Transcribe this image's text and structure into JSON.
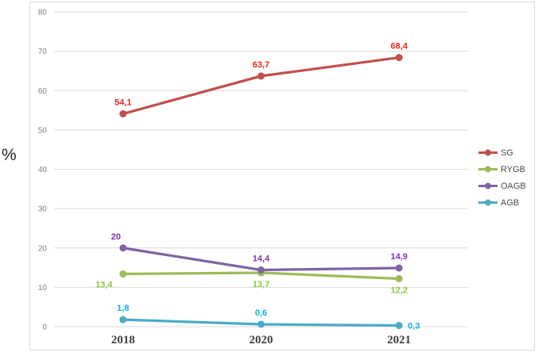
{
  "y_axis_title": "%",
  "chart_data": {
    "type": "line",
    "title": "",
    "xlabel": "",
    "ylabel": "%",
    "categories": [
      "2018",
      "2020",
      "2021"
    ],
    "series": [
      {
        "name": "SG",
        "color": "#c0504d",
        "label_color": "#e1261d",
        "values": [
          54.1,
          63.7,
          68.4
        ],
        "labels": [
          "54,1",
          "63,7",
          "68,4"
        ],
        "label_pos": [
          "above",
          "above",
          "above"
        ]
      },
      {
        "name": "RYGB",
        "color": "#9bbb59",
        "label_color": "#8dc63f",
        "values": [
          13.4,
          13.7,
          12.2
        ],
        "labels": [
          "13,4",
          "13,7",
          "12,2"
        ],
        "label_pos": [
          "below-left",
          "below",
          "below"
        ]
      },
      {
        "name": "OAGB",
        "color": "#8064a2",
        "label_color": "#8031b5",
        "values": [
          20,
          14.4,
          14.9
        ],
        "labels": [
          "20",
          "14,4",
          "14,9"
        ],
        "label_pos": [
          "above-left",
          "above",
          "above"
        ]
      },
      {
        "name": "AGB",
        "color": "#4bacc6",
        "label_color": "#00b0f0",
        "values": [
          1.8,
          0.6,
          0.3
        ],
        "labels": [
          "1,8",
          "0,6",
          "0,3"
        ],
        "label_pos": [
          "above",
          "above",
          "right"
        ]
      }
    ],
    "ylim": [
      0,
      80
    ],
    "yticks": [
      0,
      10,
      20,
      30,
      40,
      50,
      60,
      70,
      80
    ],
    "ytick_step": 10,
    "grid": true,
    "legend_position": "right",
    "decimal_separator": ",",
    "gridline_color": "#d9d9d9",
    "frame_border_color": "#d9d9d9"
  }
}
